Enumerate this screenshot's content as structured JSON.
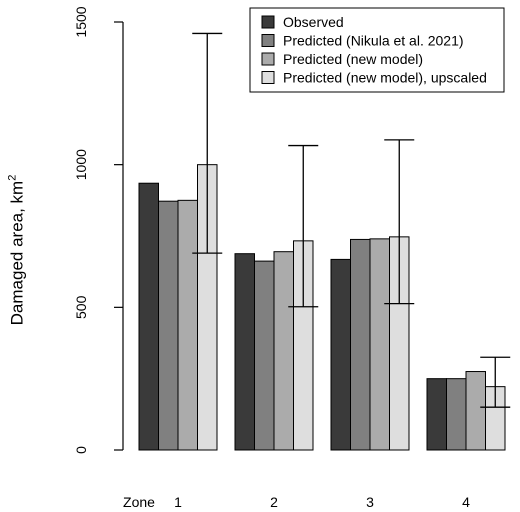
{
  "chart_data": {
    "type": "bar",
    "title": "",
    "xlabel": "",
    "x_prefix": "Zone",
    "ylabel_main": "Damaged area, km",
    "ylabel_sup": "2",
    "categories": [
      "1",
      "2",
      "3",
      "4"
    ],
    "ylim": [
      0,
      1500
    ],
    "yticks": [
      0,
      500,
      1000,
      1500
    ],
    "grid": false,
    "legend_position": "top-right",
    "series": [
      {
        "name": "Observed",
        "color": "#3a3a3a",
        "values": [
          935,
          688,
          668,
          250
        ]
      },
      {
        "name": "Predicted (Nikula et al. 2021)",
        "color": "#808080",
        "values": [
          872,
          662,
          738,
          250
        ]
      },
      {
        "name": "Predicted (new model)",
        "color": "#ababab",
        "values": [
          875,
          695,
          740,
          275
        ]
      },
      {
        "name": "Predicted (new model), upscaled",
        "color": "#dedede",
        "values": [
          1000,
          733,
          747,
          222
        ],
        "error_low": [
          690,
          502,
          513,
          150
        ],
        "error_high": [
          1460,
          1067,
          1087,
          325
        ]
      }
    ]
  }
}
